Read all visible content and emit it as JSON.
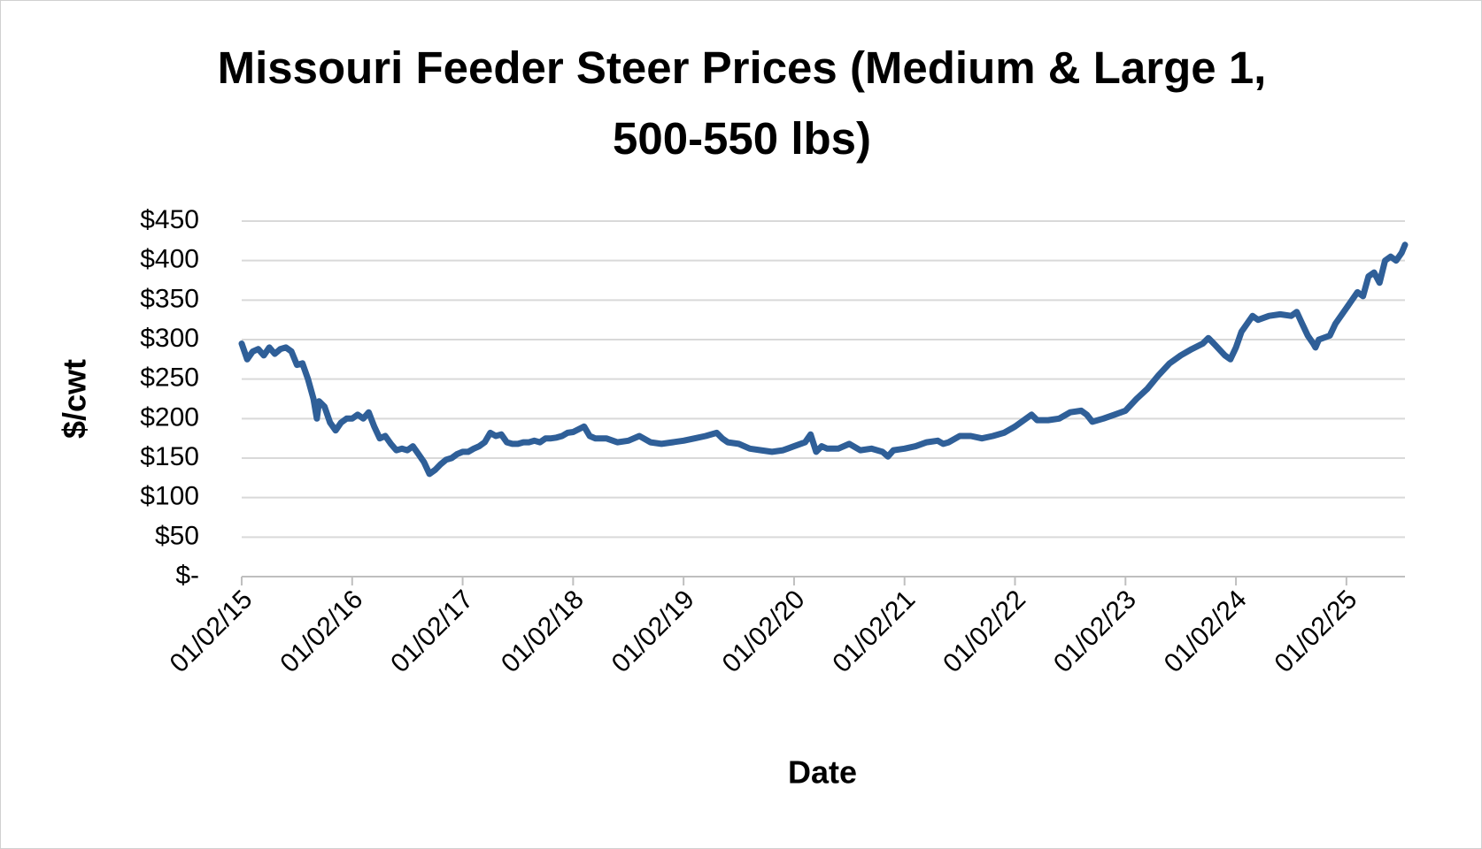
{
  "chart_data": {
    "type": "line",
    "title": "Missouri Feeder Steer Prices (Medium & Large 1, 500-550 lbs)",
    "x_label": "Date",
    "y_label": "$/cwt",
    "xlim": [
      2015,
      2025.53
    ],
    "xticks": [
      {
        "value": 2015,
        "label": "01/02/15"
      },
      {
        "value": 2016,
        "label": "01/02/16"
      },
      {
        "value": 2017,
        "label": "01/02/17"
      },
      {
        "value": 2018,
        "label": "01/02/18"
      },
      {
        "value": 2019,
        "label": "01/02/19"
      },
      {
        "value": 2020,
        "label": "01/02/20"
      },
      {
        "value": 2021,
        "label": "01/02/21"
      },
      {
        "value": 2022,
        "label": "01/02/22"
      },
      {
        "value": 2023,
        "label": "01/02/23"
      },
      {
        "value": 2024,
        "label": "01/02/24"
      },
      {
        "value": 2025,
        "label": "01/02/25"
      }
    ],
    "ylim": [
      0,
      450
    ],
    "yticks": [
      {
        "value": 0,
        "label": "$-"
      },
      {
        "value": 50,
        "label": "$50"
      },
      {
        "value": 100,
        "label": "$100"
      },
      {
        "value": 150,
        "label": "$150"
      },
      {
        "value": 200,
        "label": "$200"
      },
      {
        "value": 250,
        "label": "$250"
      },
      {
        "value": 300,
        "label": "$300"
      },
      {
        "value": 350,
        "label": "$350"
      },
      {
        "value": 400,
        "label": "$400"
      },
      {
        "value": 450,
        "label": "$450"
      }
    ],
    "grid": true,
    "series": [
      {
        "color": "#2f5f98",
        "x": [
          2015.0,
          2015.05,
          2015.1,
          2015.15,
          2015.2,
          2015.25,
          2015.3,
          2015.35,
          2015.4,
          2015.45,
          2015.5,
          2015.55,
          2015.6,
          2015.65,
          2015.68,
          2015.7,
          2015.75,
          2015.8,
          2015.85,
          2015.9,
          2015.95,
          2016.0,
          2016.05,
          2016.1,
          2016.15,
          2016.2,
          2016.25,
          2016.3,
          2016.35,
          2016.4,
          2016.45,
          2016.5,
          2016.55,
          2016.6,
          2016.65,
          2016.7,
          2016.75,
          2016.8,
          2016.85,
          2016.9,
          2016.95,
          2017.0,
          2017.05,
          2017.1,
          2017.15,
          2017.2,
          2017.25,
          2017.3,
          2017.35,
          2017.4,
          2017.45,
          2017.5,
          2017.55,
          2017.6,
          2017.65,
          2017.7,
          2017.75,
          2017.8,
          2017.85,
          2017.9,
          2017.95,
          2018.0,
          2018.1,
          2018.15,
          2018.2,
          2018.3,
          2018.4,
          2018.5,
          2018.6,
          2018.7,
          2018.8,
          2018.9,
          2019.0,
          2019.1,
          2019.2,
          2019.3,
          2019.35,
          2019.4,
          2019.5,
          2019.6,
          2019.7,
          2019.8,
          2019.9,
          2020.0,
          2020.1,
          2020.15,
          2020.2,
          2020.25,
          2020.3,
          2020.4,
          2020.5,
          2020.6,
          2020.7,
          2020.8,
          2020.85,
          2020.9,
          2021.0,
          2021.1,
          2021.2,
          2021.3,
          2021.35,
          2021.4,
          2021.5,
          2021.6,
          2021.7,
          2021.8,
          2021.9,
          2022.0,
          2022.1,
          2022.15,
          2022.2,
          2022.3,
          2022.4,
          2022.5,
          2022.6,
          2022.65,
          2022.7,
          2022.8,
          2022.9,
          2023.0,
          2023.1,
          2023.2,
          2023.3,
          2023.4,
          2023.5,
          2023.6,
          2023.7,
          2023.75,
          2023.8,
          2023.9,
          2023.95,
          2024.0,
          2024.05,
          2024.1,
          2024.15,
          2024.2,
          2024.3,
          2024.4,
          2024.5,
          2024.55,
          2024.6,
          2024.65,
          2024.7,
          2024.72,
          2024.75,
          2024.85,
          2024.9,
          2025.0,
          2025.05,
          2025.1,
          2025.15,
          2025.2,
          2025.25,
          2025.3,
          2025.35,
          2025.4,
          2025.45,
          2025.5,
          2025.53
        ],
        "values": [
          295,
          275,
          285,
          288,
          280,
          290,
          282,
          288,
          290,
          285,
          268,
          270,
          250,
          225,
          200,
          222,
          215,
          195,
          185,
          195,
          200,
          200,
          205,
          200,
          208,
          190,
          175,
          178,
          168,
          160,
          162,
          160,
          165,
          155,
          145,
          130,
          135,
          142,
          148,
          150,
          155,
          158,
          158,
          162,
          165,
          170,
          182,
          178,
          180,
          170,
          168,
          168,
          170,
          170,
          172,
          170,
          175,
          175,
          176,
          178,
          182,
          183,
          190,
          178,
          175,
          175,
          170,
          172,
          178,
          170,
          168,
          170,
          172,
          175,
          178,
          182,
          175,
          170,
          168,
          162,
          160,
          158,
          160,
          165,
          170,
          180,
          158,
          165,
          162,
          162,
          168,
          160,
          162,
          158,
          152,
          160,
          162,
          165,
          170,
          172,
          168,
          170,
          178,
          178,
          175,
          178,
          182,
          190,
          200,
          205,
          198,
          198,
          200,
          208,
          210,
          205,
          196,
          200,
          205,
          210,
          225,
          238,
          255,
          270,
          280,
          288,
          295,
          302,
          295,
          280,
          275,
          290,
          310,
          320,
          330,
          325,
          330,
          332,
          330,
          335,
          320,
          305,
          295,
          290,
          300,
          305,
          320,
          340,
          350,
          360,
          355,
          380,
          385,
          372,
          400,
          405,
          400,
          410,
          420
        ]
      }
    ]
  }
}
